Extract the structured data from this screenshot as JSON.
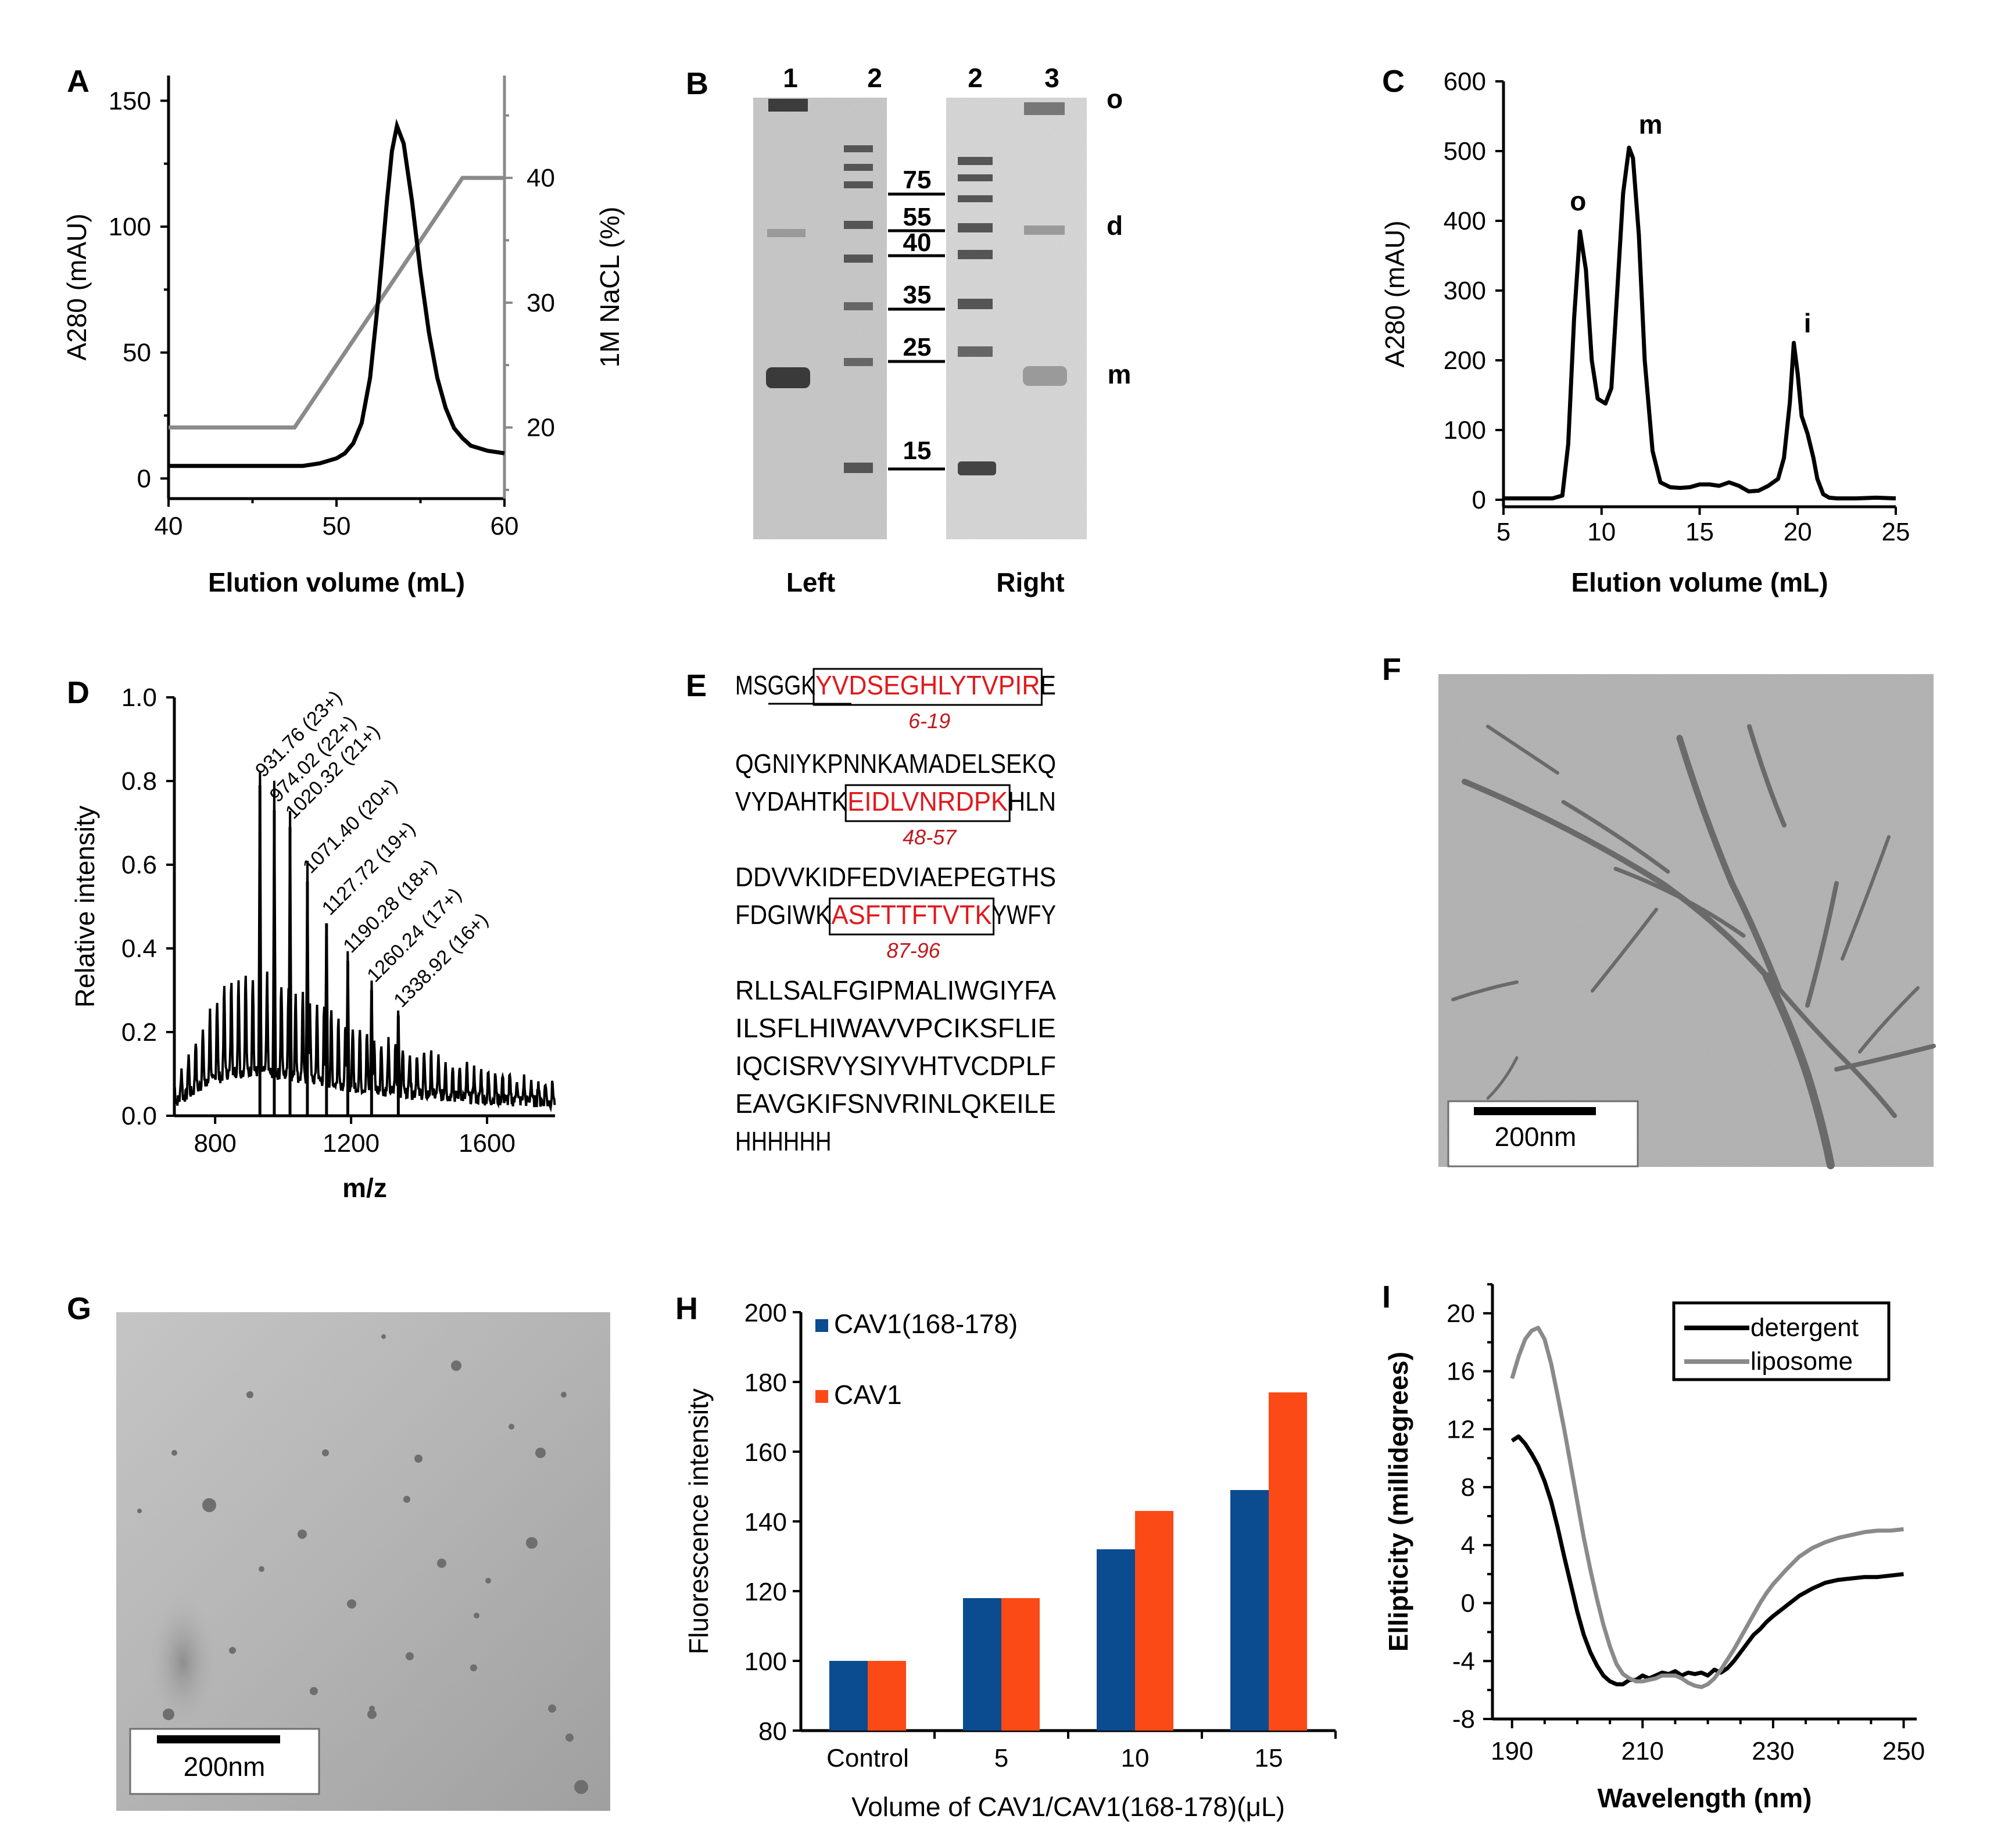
{
  "panel_letters": [
    "A",
    "B",
    "C",
    "D",
    "E",
    "F",
    "G",
    "H",
    "I"
  ],
  "colors": {
    "black": "#000000",
    "gray": "#8a8a8a",
    "blue": "#0b4b8f",
    "orange": "#fb4a16",
    "red": "#e0191d"
  },
  "chart_data": [
    {
      "panel": "A",
      "type": "line",
      "xlabel": "Elution volume (mL)",
      "ylabel": "A280 (mAU)",
      "y2label": "1M NaCL (%)",
      "xlim": [
        40,
        60
      ],
      "ylim": [
        -8,
        160
      ],
      "y2lim": [
        14.3,
        48.2
      ],
      "xticks": [
        "40",
        "50",
        "60"
      ],
      "yticks": [
        "0",
        "50",
        "100",
        "150"
      ],
      "y2ticks": [
        "20",
        "30",
        "40"
      ],
      "series": [
        {
          "name": "A280",
          "color": "#000000",
          "x": [
            40,
            44,
            46,
            47,
            48,
            49,
            50,
            50.5,
            51,
            51.5,
            52,
            52.5,
            53,
            53.3,
            53.6,
            54,
            54.5,
            55,
            55.5,
            56,
            56.5,
            57,
            57.5,
            58,
            58.5,
            59,
            59.5,
            60
          ],
          "y": [
            5,
            5,
            5,
            5,
            5,
            6,
            8,
            10,
            14,
            22,
            40,
            72,
            110,
            130,
            140,
            133,
            110,
            82,
            58,
            40,
            28,
            20,
            16,
            13,
            12,
            11,
            10.5,
            10
          ]
        },
        {
          "name": "NaCl",
          "axis": "right",
          "color": "#8a8a8a",
          "x": [
            40,
            47.5,
            57.5,
            60
          ],
          "y": [
            20,
            20,
            40,
            40
          ]
        }
      ]
    },
    {
      "panel": "C",
      "type": "line",
      "xlabel": "Elution volume (mL)",
      "ylabel": "A280 (mAU)",
      "xlim": [
        5,
        25
      ],
      "ylim": [
        -10,
        600
      ],
      "xticks": [
        "5",
        "10",
        "15",
        "20",
        "25"
      ],
      "yticks": [
        "0",
        "100",
        "200",
        "300",
        "400",
        "500",
        "600"
      ],
      "peak_labels": [
        {
          "text": "o",
          "x": 8.8,
          "y": 415
        },
        {
          "text": "m",
          "x": 12.5,
          "y": 525
        },
        {
          "text": "i",
          "x": 20.5,
          "y": 240
        }
      ],
      "series": [
        {
          "name": "A280",
          "color": "#000000",
          "x": [
            5,
            7,
            7.5,
            8,
            8.3,
            8.6,
            8.9,
            9.2,
            9.5,
            9.8,
            10.2,
            10.5,
            10.8,
            11.1,
            11.4,
            11.6,
            11.9,
            12.2,
            12.6,
            13,
            13.5,
            14,
            14.5,
            15,
            15.5,
            16,
            16.5,
            17,
            17.5,
            18,
            18.5,
            19,
            19.3,
            19.6,
            19.8,
            20,
            20.2,
            20.5,
            20.8,
            21,
            21.3,
            21.6,
            22,
            23,
            24,
            25
          ],
          "y": [
            2,
            2,
            2,
            6,
            80,
            260,
            385,
            330,
            200,
            145,
            138,
            160,
            300,
            440,
            505,
            490,
            380,
            200,
            70,
            25,
            18,
            17,
            18,
            22,
            22,
            20,
            25,
            20,
            12,
            13,
            20,
            30,
            60,
            140,
            225,
            180,
            120,
            95,
            60,
            30,
            8,
            3,
            2,
            2,
            3,
            2
          ]
        }
      ]
    },
    {
      "panel": "D",
      "type": "line",
      "xlabel": "m/z",
      "ylabel": "Relative intensity",
      "xlim": [
        680,
        1800
      ],
      "ylim": [
        0.0,
        1.0
      ],
      "xticks": [
        "800",
        "1200",
        "1600"
      ],
      "yticks": [
        "0.0",
        "0.2",
        "0.4",
        "0.6",
        "0.8",
        "1.0"
      ],
      "envelope": {
        "x": [
          680,
          760,
          840,
          900,
          931.76,
          1000,
          1100,
          1200,
          1300,
          1400,
          1500,
          1600,
          1700,
          1800
        ],
        "y": [
          0.05,
          0.16,
          0.25,
          0.26,
          0.26,
          0.24,
          0.2,
          0.16,
          0.13,
          0.11,
          0.09,
          0.07,
          0.06,
          0.05
        ]
      },
      "peaks": [
        {
          "mz": 931.76,
          "label": "931.76 (23+)",
          "h": 0.79
        },
        {
          "mz": 974.02,
          "label": "974.02 (22+)",
          "h": 0.73
        },
        {
          "mz": 1020.32,
          "label": "1020.32 (21+)",
          "h": 0.69
        },
        {
          "mz": 1071.4,
          "label": "1071.40 (20+)",
          "h": 0.56
        },
        {
          "mz": 1127.72,
          "label": "1127.72 (19+)",
          "h": 0.46
        },
        {
          "mz": 1190.28,
          "label": "1190.28 (18+)",
          "h": 0.37
        },
        {
          "mz": 1260.24,
          "label": "1260.24 (17+)",
          "h": 0.3
        },
        {
          "mz": 1338.92,
          "label": "1338.92 (16+)",
          "h": 0.24
        }
      ]
    },
    {
      "panel": "H",
      "type": "bar",
      "xlabel": "Volume of CAV1/CAV1(168-178)(μL)",
      "ylabel": "Fluorescence intensity",
      "categories": [
        "Control",
        "5",
        "10",
        "15"
      ],
      "ylim": [
        80,
        200
      ],
      "yticks": [
        "80",
        "100",
        "120",
        "140",
        "160",
        "180",
        "200"
      ],
      "series": [
        {
          "name": "CAV1(168-178)",
          "color": "#0b4b8f",
          "values": [
            100,
            118,
            132,
            149
          ]
        },
        {
          "name": "CAV1",
          "color": "#fb4a16",
          "values": [
            100,
            118,
            143,
            177
          ]
        }
      ]
    },
    {
      "panel": "I",
      "type": "line",
      "xlabel": "Wavelength (nm)",
      "ylabel": "Ellipticity (millidegrees)",
      "xlim": [
        187,
        252
      ],
      "ylim": [
        -8,
        22
      ],
      "xticks": [
        "190",
        "210",
        "230",
        "250"
      ],
      "yticks": [
        "-8",
        "-4",
        "0",
        "4",
        "8",
        "12",
        "16",
        "20"
      ],
      "series": [
        {
          "name": "detergent",
          "color": "#000000",
          "x": [
            190,
            191,
            192,
            193,
            194,
            195,
            196,
            197,
            198,
            199,
            200,
            201,
            202,
            203,
            204,
            205,
            206,
            207,
            208,
            209,
            210,
            211,
            212,
            213,
            214,
            215,
            216,
            217,
            218,
            219,
            220,
            221,
            222,
            223,
            224,
            225,
            226,
            227,
            228,
            229,
            230,
            232,
            234,
            236,
            238,
            240,
            242,
            244,
            246,
            248,
            250
          ],
          "y": [
            11.2,
            11.5,
            11,
            10.3,
            9.5,
            8.4,
            7,
            5.2,
            3.2,
            1.3,
            -0.6,
            -2.2,
            -3.4,
            -4.3,
            -5,
            -5.4,
            -5.6,
            -5.6,
            -5.3,
            -5.3,
            -5,
            -5.2,
            -5,
            -4.8,
            -4.9,
            -4.7,
            -5,
            -4.8,
            -4.9,
            -4.8,
            -5,
            -4.6,
            -4.8,
            -4.5,
            -4,
            -3.4,
            -2.8,
            -2.2,
            -1.8,
            -1.3,
            -0.9,
            -0.2,
            0.5,
            1,
            1.4,
            1.6,
            1.7,
            1.8,
            1.8,
            1.9,
            2
          ]
        },
        {
          "name": "liposome",
          "color": "#8a8a8a",
          "x": [
            190,
            191,
            192,
            193,
            194,
            195,
            196,
            197,
            198,
            199,
            200,
            201,
            202,
            203,
            204,
            205,
            206,
            207,
            208,
            209,
            210,
            211,
            212,
            213,
            214,
            215,
            216,
            217,
            218,
            219,
            220,
            221,
            222,
            223,
            224,
            225,
            226,
            227,
            228,
            229,
            230,
            232,
            234,
            236,
            238,
            240,
            242,
            244,
            246,
            248,
            250
          ],
          "y": [
            15.5,
            17,
            18.2,
            18.8,
            19,
            18.2,
            16.5,
            14.3,
            12,
            9.5,
            7,
            4.5,
            2.3,
            0.3,
            -1.5,
            -3,
            -4.2,
            -4.9,
            -5.2,
            -5.4,
            -5.4,
            -5.3,
            -5.2,
            -5,
            -5,
            -5,
            -5.2,
            -5.5,
            -5.7,
            -5.8,
            -5.6,
            -5.2,
            -4.6,
            -3.9,
            -3.2,
            -2.4,
            -1.6,
            -0.8,
            0,
            0.7,
            1.3,
            2.3,
            3.2,
            3.8,
            4.2,
            4.5,
            4.7,
            4.9,
            5,
            5,
            5.1
          ]
        }
      ]
    }
  ],
  "panel_B": {
    "lane_numbers": [
      "1",
      "2",
      "2",
      "3"
    ],
    "markers": [
      "75",
      "55",
      "40",
      "35",
      "25",
      "15"
    ],
    "band_labels": [
      "o",
      "d",
      "m"
    ],
    "gel_labels": [
      "Left",
      "Right"
    ]
  },
  "panel_E": {
    "lines": [
      [
        {
          "t": "MSGGK"
        },
        {
          "t": "YVDSEGHLYTVPIR",
          "box": 1
        },
        {
          "t": "E"
        }
      ],
      [
        {
          "t": "QGNIYKPNNKAMADELSEKQ"
        }
      ],
      [
        {
          "t": "VYDAHTK"
        },
        {
          "t": "EIDLVNRDPK",
          "box": 1
        },
        {
          "t": "HLN"
        }
      ],
      [
        {
          "t": "DDVVKIDFEDVIAEPEGTHS"
        }
      ],
      [
        {
          "t": "FDGIWK"
        },
        {
          "t": "ASFTTFTVTK",
          "box": 1
        },
        {
          "t": "YWFY"
        }
      ],
      [
        {
          "t": "RLLSALFGIPMALIWGIYFA"
        }
      ],
      [
        {
          "t": "ILSFLHIWAVVPCIKSFLIE"
        }
      ],
      [
        {
          "t": "IQCISRVYSIYVHTVCDPLF"
        }
      ],
      [
        {
          "t": "EAVGKIFSNVRINLQKEILE"
        }
      ],
      [
        {
          "t": "HHHHHH"
        }
      ]
    ],
    "fragments": [
      "6-19",
      "48-57",
      "87-96"
    ]
  },
  "panel_F": {
    "scale_bar": "200nm"
  },
  "panel_G": {
    "scale_bar": "200nm"
  }
}
